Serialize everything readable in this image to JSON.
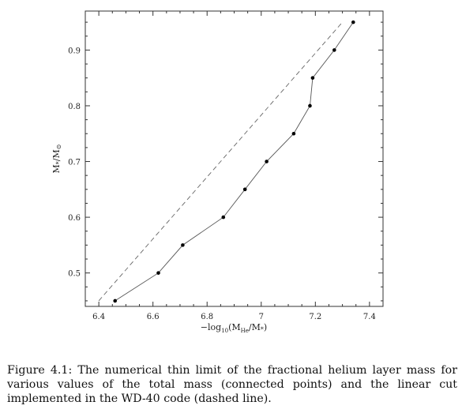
{
  "chart_data": {
    "type": "line",
    "xlabel_main": "−log",
    "xlabel_sub": "10",
    "xlabel_paren_open": "(M",
    "xlabel_he_sub": "He",
    "xlabel_rest": "/M",
    "xlabel_star": "*",
    "xlabel_close": ")",
    "ylabel_M": "M",
    "ylabel_star": "*",
    "ylabel_slash": "/M",
    "ylabel_sun": "⊙",
    "xlim": [
      6.35,
      7.45
    ],
    "ylim": [
      0.44,
      0.97
    ],
    "xticks": [
      6.4,
      6.6,
      6.8,
      7.0,
      7.2,
      7.4
    ],
    "xtick_labels": [
      "6.4",
      "6.6",
      "6.8",
      "7",
      "7.2",
      "7.4"
    ],
    "yticks": [
      0.5,
      0.6,
      0.7,
      0.8,
      0.9
    ],
    "ytick_labels": [
      "0.5",
      "0.6",
      "0.7",
      "0.8",
      "0.9"
    ],
    "series": [
      {
        "style": "solid-points",
        "x": [
          6.46,
          6.62,
          6.71,
          6.86,
          6.94,
          7.02,
          7.12,
          7.18,
          7.19,
          7.27,
          7.34
        ],
        "y": [
          0.45,
          0.5,
          0.55,
          0.6,
          0.65,
          0.7,
          0.75,
          0.8,
          0.85,
          0.9,
          0.95
        ]
      },
      {
        "style": "dashed",
        "x": [
          6.4,
          7.3
        ],
        "y": [
          0.45,
          0.95
        ]
      }
    ]
  },
  "caption": {
    "label": "Figure 4.1:",
    "text": "The numerical thin limit of the fractional helium layer mass for various values of the total mass (connected points) and the linear cut implemented in the WD-40 code (dashed line)."
  }
}
